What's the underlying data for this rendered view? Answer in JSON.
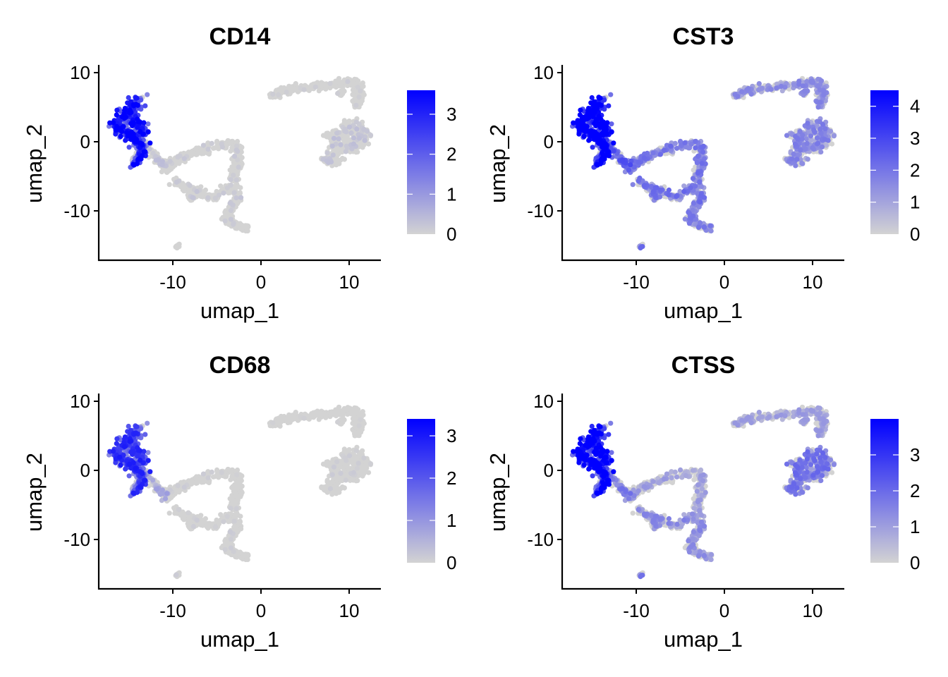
{
  "figure": {
    "layout": "2x2 feature plots",
    "low_color": "#d3d3d3",
    "high_color": "#0000ff",
    "axis_color": "#000000"
  },
  "chart_data": [
    {
      "type": "scatter",
      "title": "CD14",
      "xlabel": "umap_1",
      "ylabel": "umap_2",
      "xticks": [
        -10,
        0,
        10
      ],
      "yticks": [
        10,
        0,
        -10
      ],
      "xlim": [
        -17.8,
        13.5
      ],
      "ylim": [
        -17,
        11.2
      ],
      "grid": false,
      "legend_placement": "right",
      "colorbar": {
        "min": 0,
        "max": 3.6,
        "ticks": [
          0,
          1,
          2,
          3
        ]
      },
      "expression": {
        "left_cluster": 2.6,
        "trunk": 0.3,
        "loop": 0.15,
        "lower_arm": 0.2,
        "tail": 0.15,
        "top_arc": 0.1,
        "right_blob": 0.25,
        "small_island": 0.0
      }
    },
    {
      "type": "scatter",
      "title": "CST3",
      "xlabel": "umap_1",
      "ylabel": "umap_2",
      "xticks": [
        -10,
        0,
        10
      ],
      "yticks": [
        10,
        0,
        -10
      ],
      "xlim": [
        -17.8,
        13.5
      ],
      "ylim": [
        -17,
        11.2
      ],
      "grid": false,
      "legend_placement": "right",
      "colorbar": {
        "min": 0,
        "max": 4.5,
        "ticks": [
          0,
          1,
          2,
          3,
          4
        ]
      },
      "expression": {
        "left_cluster": 4.1,
        "trunk": 2.0,
        "loop": 1.5,
        "lower_arm": 1.6,
        "tail": 1.4,
        "top_arc": 1.2,
        "right_blob": 1.3,
        "small_island": 1.6
      }
    },
    {
      "type": "scatter",
      "title": "CD68",
      "xlabel": "umap_1",
      "ylabel": "umap_2",
      "xticks": [
        -10,
        0,
        10
      ],
      "yticks": [
        10,
        0,
        -10
      ],
      "xlim": [
        -17.8,
        13.5
      ],
      "ylim": [
        -17,
        11.2
      ],
      "grid": false,
      "legend_placement": "right",
      "colorbar": {
        "min": 0,
        "max": 3.4,
        "ticks": [
          0,
          1,
          2,
          3
        ]
      },
      "expression": {
        "left_cluster": 2.0,
        "trunk": 0.6,
        "loop": 0.1,
        "lower_arm": 0.1,
        "tail": 0.1,
        "top_arc": 0.05,
        "right_blob": 0.1,
        "small_island": 0.2
      }
    },
    {
      "type": "scatter",
      "title": "CTSS",
      "xlabel": "umap_1",
      "ylabel": "umap_2",
      "xticks": [
        -10,
        0,
        10
      ],
      "yticks": [
        10,
        0,
        -10
      ],
      "xlim": [
        -17.8,
        13.5
      ],
      "ylim": [
        -17,
        11.2
      ],
      "grid": false,
      "legend_placement": "right",
      "colorbar": {
        "min": 0,
        "max": 4.0,
        "ticks": [
          0,
          1,
          2,
          3
        ]
      },
      "expression": {
        "left_cluster": 3.2,
        "trunk": 1.3,
        "loop": 0.8,
        "lower_arm": 1.1,
        "tail": 1.0,
        "top_arc": 0.8,
        "right_blob": 1.4,
        "small_island": 1.3
      }
    }
  ]
}
